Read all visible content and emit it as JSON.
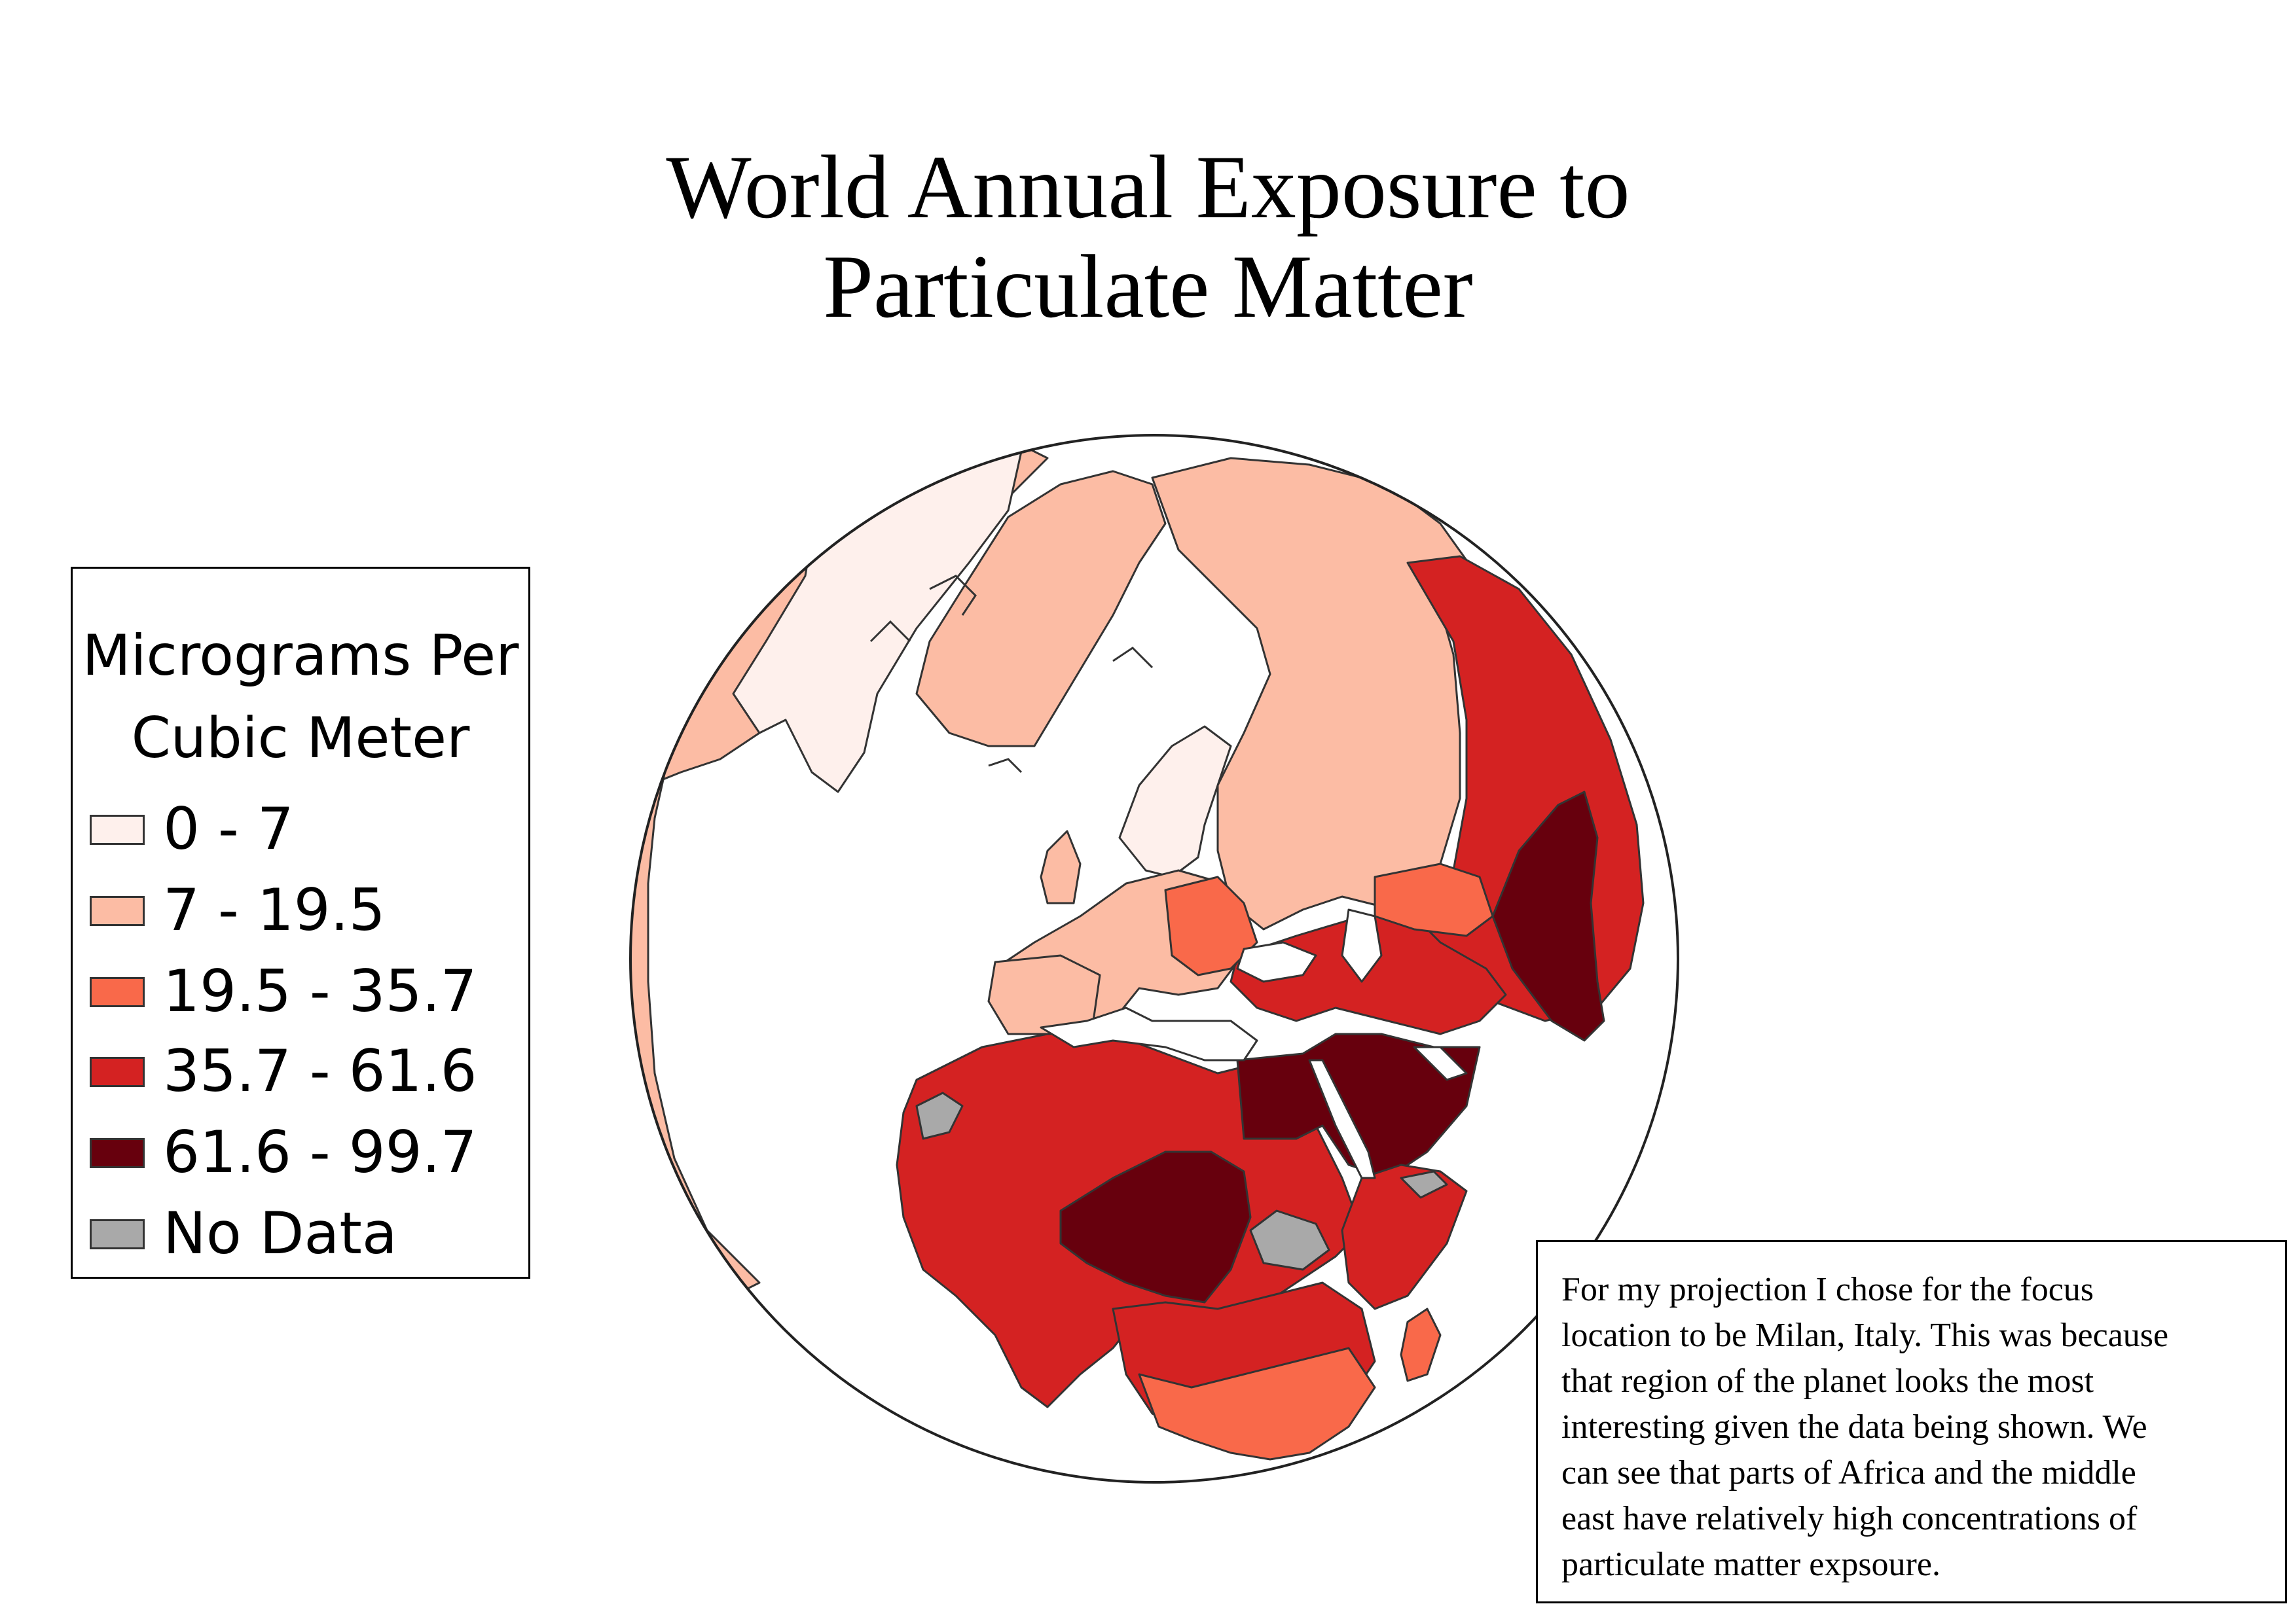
{
  "map": {
    "title_lines": [
      "World Annual Exposure to",
      "Particulate Matter"
    ],
    "projection_center": "Milan, Italy",
    "legend": {
      "title_lines": [
        "Micrograms Per",
        "Cubic Meter"
      ],
      "items": [
        {
          "label": "0 - 7",
          "color": "#fef0ec"
        },
        {
          "label": "7 - 19.5",
          "color": "#fcbca4"
        },
        {
          "label": "19.5 - 35.7",
          "color": "#f9694a"
        },
        {
          "label": "35.7 - 61.6",
          "color": "#d42222"
        },
        {
          "label": "61.6 - 99.7",
          "color": "#67000d"
        },
        {
          "label": "No Data",
          "color": "#a9a9a9"
        }
      ]
    },
    "note_lines": [
      "For my projection I chose for the focus",
      "location to be Milan, Italy. This was because",
      "that region of the planet looks the most",
      "interesting given the data being shown. We",
      "can see that parts of Africa and the middle",
      "east have relatively high concentrations of",
      "particulate matter expsoure."
    ]
  }
}
